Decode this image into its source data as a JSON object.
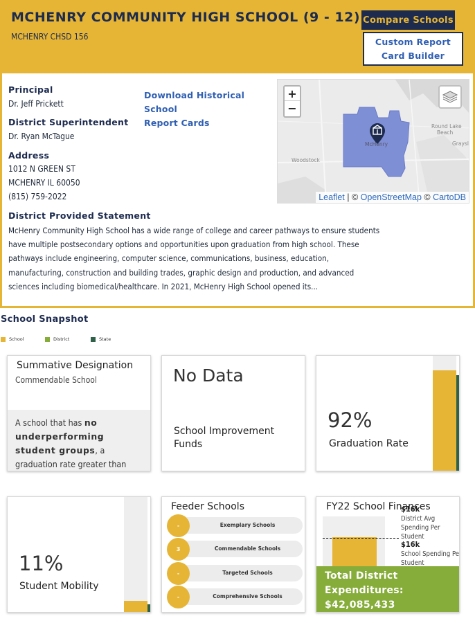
{
  "header": {
    "school_name": "MCHENRY COMMUNITY HIGH SCHOOL (9 - 12)",
    "district_name": "MCHENRY CHSD 156",
    "compare_button": "Compare Schools",
    "custom_report_button_line1": "Custom Report",
    "custom_report_button_line2": "Card Builder"
  },
  "info": {
    "principal_label": "Principal",
    "principal_name": "Dr. Jeff Prickett",
    "superintendent_label": "District Superintendent",
    "superintendent_name": "Dr. Ryan McTague",
    "address_label": "Address",
    "address_line1": "1012 N GREEN ST",
    "address_line2": "MCHENRY IL 60050",
    "phone": "(815) 759-2022",
    "download_link_line1": "Download Historical School",
    "download_link_line2": "Report Cards",
    "statement_label": "District Provided Statement",
    "statement_line1": "McHenry Community High School has a wide range of college and career pathways to ensure students",
    "statement_line2": "have multiple postsecondary options and opportunities upon graduation from high school. These",
    "statement_line3": "pathways include engineering, computer science, communications, business, education,",
    "statement_line4": "manufacturing, construction and building trades, graphic design and production, and advanced",
    "statement_line5": "sciences including biomedical/healthcare. In 2021, McHenry High School opened its..."
  },
  "map": {
    "zoom_in": "+",
    "zoom_out": "−",
    "label_woodstock": "Woodstock",
    "label_round_lake": "Round Lake",
    "label_beach": "Beach",
    "label_grayslake": "Graysl",
    "label_mchenry": "McHenry",
    "attribution_leaflet": "Leaflet",
    "attribution_sep1": " | © ",
    "attribution_osm": "OpenStreetMap",
    "attribution_sep2": " © ",
    "attribution_carto": "CartoDB",
    "district_color": "#7f8fd6",
    "marker_color": "#1d2b4f"
  },
  "snapshot": {
    "title": "School Snapshot",
    "legend": [
      {
        "label": "School",
        "color": "#e6b535"
      },
      {
        "label": "District",
        "color": "#86ac3a"
      },
      {
        "label": "State",
        "color": "#2e6147"
      }
    ],
    "summative": {
      "title": "Summative Designation",
      "value": "Commendable School",
      "desc_prefix": "A school that has ",
      "desc_bold": "no underperforming student groups",
      "desc_suffix": ", a graduation rate greater than"
    },
    "improvement": {
      "value": "No Data",
      "label_line1": "School Improvement",
      "label_line2": "Funds"
    },
    "graduation": {
      "value": "92%",
      "label": "Graduation Rate",
      "school_fraction": 0.92,
      "state_fraction": 0.88
    },
    "mobility": {
      "value": "11%",
      "label": "Student Mobility",
      "school_fraction": 0.11,
      "state_fraction": 0.08
    },
    "feeder": {
      "title": "Feeder Schools",
      "rows": [
        {
          "count": "-",
          "label": "Exemplary Schools"
        },
        {
          "count": "3",
          "label": "Commendable Schools"
        },
        {
          "count": "-",
          "label": "Targeted Schools"
        },
        {
          "count": "-",
          "label": "Comprehensive Schools"
        }
      ]
    },
    "finances": {
      "title": "FY22 School Finances",
      "district_value": "$16k",
      "district_label_line1": "District Avg",
      "district_label_line2": "Spending Per",
      "district_label_line3": "Student",
      "school_value": "$16k",
      "school_label_line1": "School Spending Per",
      "school_label_line2": "Student",
      "total_line1": "Total District",
      "total_line2": "Expenditures:",
      "total_line3": "$42,085,433"
    }
  }
}
